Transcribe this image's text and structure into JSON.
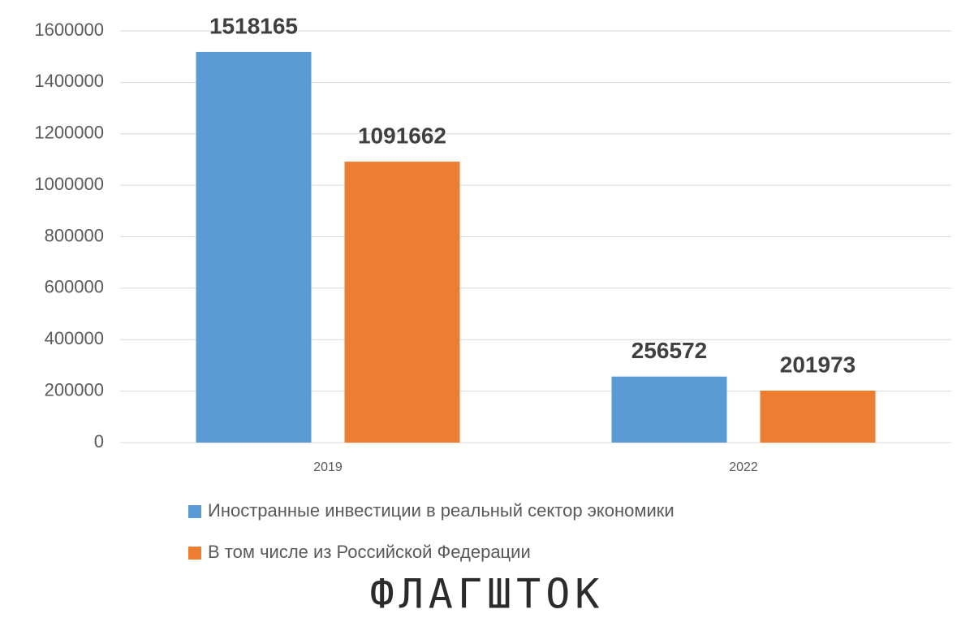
{
  "chart_data": {
    "type": "bar",
    "categories": [
      "2019",
      "2022"
    ],
    "series": [
      {
        "name": "Иностранные инвестиции в реальный сектор экономики",
        "color": "#5b9bd5",
        "values": [
          1518165,
          256572
        ]
      },
      {
        "name": "В том числе из Российской Федерации",
        "color": "#ed7d31",
        "values": [
          1091662,
          201973
        ]
      }
    ],
    "ylim": [
      0,
      1600000
    ],
    "yticks": [
      0,
      200000,
      400000,
      600000,
      800000,
      1000000,
      1200000,
      1400000,
      1600000
    ],
    "grid": true,
    "watermark": "ФЛАГШТОК"
  }
}
